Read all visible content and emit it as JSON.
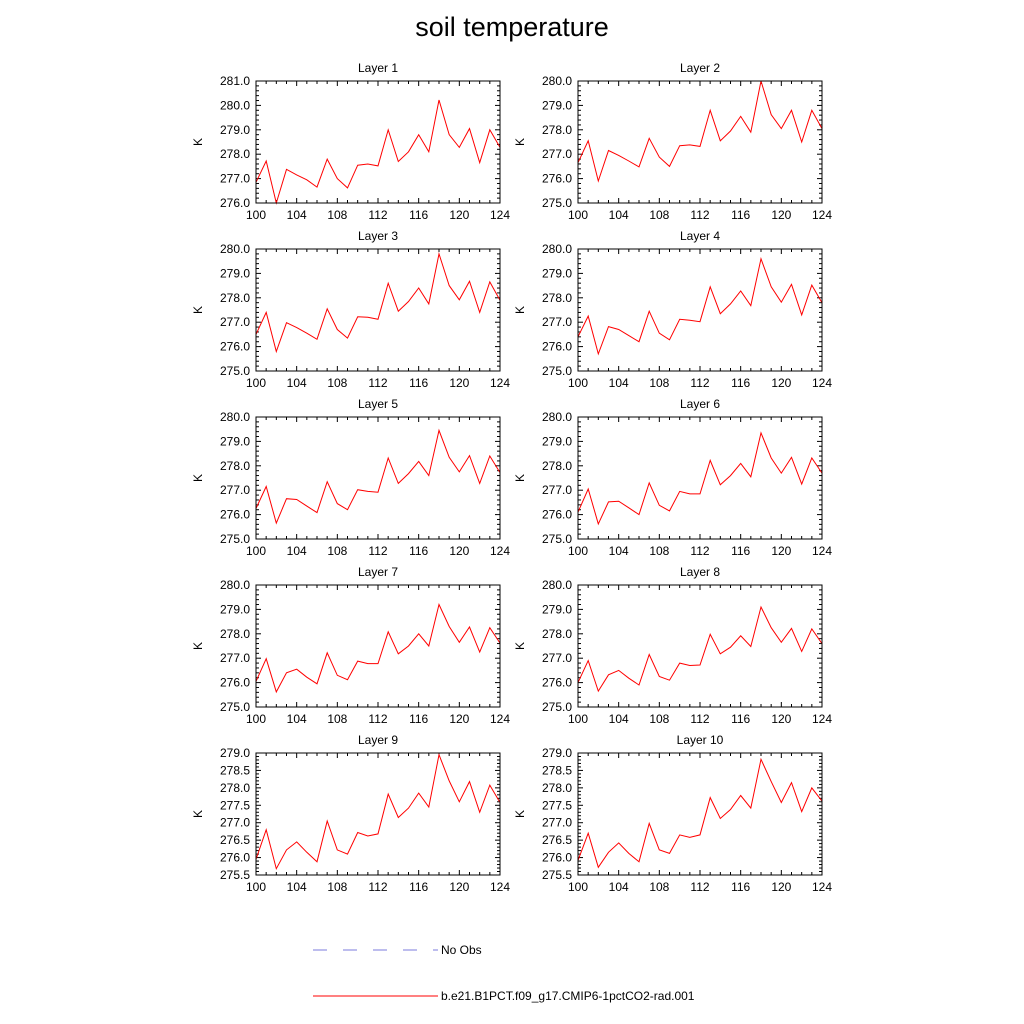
{
  "title": "soil temperature",
  "legend": {
    "obs_label": "No Obs",
    "obs_color": "#7b7bdc",
    "model_label": "b.e21.B1PCT.f09_g17.CMIP6-1pctCO2-rad.001",
    "model_color": "#ff0000"
  },
  "chart_data": [
    {
      "type": "line",
      "title": "Layer 1",
      "xlabel": "",
      "ylabel": "K",
      "xlim": [
        100,
        124
      ],
      "ylim": [
        276.0,
        281.0
      ],
      "xticks": [
        100,
        104,
        108,
        112,
        116,
        120,
        124
      ],
      "yticks": [
        "276.0",
        "277.0",
        "278.0",
        "279.0",
        "280.0",
        "281.0"
      ],
      "x": [
        100,
        101,
        102,
        103,
        104,
        105,
        106,
        107,
        108,
        109,
        110,
        111,
        112,
        113,
        114,
        115,
        116,
        117,
        118,
        119,
        120,
        121,
        122,
        123,
        124
      ],
      "series": [
        {
          "name": "b.e21.B1PCT.f09_g17.CMIP6-1pctCO2-rad.001",
          "color": "#ff0000",
          "values": [
            276.85,
            277.72,
            276.0,
            277.38,
            277.15,
            276.95,
            276.65,
            277.8,
            277.0,
            276.62,
            277.55,
            277.6,
            277.52,
            279.0,
            277.7,
            278.1,
            278.8,
            278.1,
            280.22,
            278.8,
            278.28,
            279.05,
            277.65,
            279.0,
            278.28
          ]
        }
      ]
    },
    {
      "type": "line",
      "title": "Layer 2",
      "xlabel": "",
      "ylabel": "K",
      "xlim": [
        100,
        124
      ],
      "ylim": [
        275.0,
        280.0
      ],
      "xticks": [
        100,
        104,
        108,
        112,
        116,
        120,
        124
      ],
      "yticks": [
        "275.0",
        "276.0",
        "277.0",
        "278.0",
        "279.0",
        "280.0"
      ],
      "x": [
        100,
        101,
        102,
        103,
        104,
        105,
        106,
        107,
        108,
        109,
        110,
        111,
        112,
        113,
        114,
        115,
        116,
        117,
        118,
        119,
        120,
        121,
        122,
        123,
        124
      ],
      "series": [
        {
          "name": "b.e21.B1PCT.f09_g17.CMIP6-1pctCO2-rad.001",
          "color": "#ff0000",
          "values": [
            276.65,
            277.55,
            275.9,
            277.15,
            276.95,
            276.72,
            276.48,
            277.65,
            276.88,
            276.5,
            277.35,
            277.38,
            277.32,
            278.8,
            277.55,
            277.95,
            278.55,
            277.9,
            280.0,
            278.62,
            278.05,
            278.8,
            277.5,
            278.8,
            278.05
          ]
        }
      ]
    },
    {
      "type": "line",
      "title": "Layer 3",
      "xlabel": "",
      "ylabel": "K",
      "xlim": [
        100,
        124
      ],
      "ylim": [
        275.0,
        280.0
      ],
      "xticks": [
        100,
        104,
        108,
        112,
        116,
        120,
        124
      ],
      "yticks": [
        "275.0",
        "276.0",
        "277.0",
        "278.0",
        "279.0",
        "280.0"
      ],
      "x": [
        100,
        101,
        102,
        103,
        104,
        105,
        106,
        107,
        108,
        109,
        110,
        111,
        112,
        113,
        114,
        115,
        116,
        117,
        118,
        119,
        120,
        121,
        122,
        123,
        124
      ],
      "series": [
        {
          "name": "b.e21.B1PCT.f09_g17.CMIP6-1pctCO2-rad.001",
          "color": "#ff0000",
          "values": [
            276.5,
            277.4,
            275.8,
            276.98,
            276.78,
            276.55,
            276.3,
            277.55,
            276.7,
            276.35,
            277.22,
            277.2,
            277.12,
            278.6,
            277.45,
            277.85,
            278.4,
            277.75,
            279.8,
            278.5,
            277.92,
            278.68,
            277.4,
            278.65,
            277.9
          ]
        }
      ]
    },
    {
      "type": "line",
      "title": "Layer 4",
      "xlabel": "",
      "ylabel": "K",
      "xlim": [
        100,
        124
      ],
      "ylim": [
        275.0,
        280.0
      ],
      "xticks": [
        100,
        104,
        108,
        112,
        116,
        120,
        124
      ],
      "yticks": [
        "275.0",
        "276.0",
        "277.0",
        "278.0",
        "279.0",
        "280.0"
      ],
      "x": [
        100,
        101,
        102,
        103,
        104,
        105,
        106,
        107,
        108,
        109,
        110,
        111,
        112,
        113,
        114,
        115,
        116,
        117,
        118,
        119,
        120,
        121,
        122,
        123,
        124
      ],
      "series": [
        {
          "name": "b.e21.B1PCT.f09_g17.CMIP6-1pctCO2-rad.001",
          "color": "#ff0000",
          "values": [
            276.4,
            277.25,
            275.7,
            276.82,
            276.7,
            276.45,
            276.2,
            277.45,
            276.55,
            276.28,
            277.12,
            277.08,
            277.02,
            278.45,
            277.35,
            277.75,
            278.28,
            277.68,
            279.6,
            278.45,
            277.82,
            278.55,
            277.3,
            278.52,
            277.8
          ]
        }
      ]
    },
    {
      "type": "line",
      "title": "Layer 5",
      "xlabel": "",
      "ylabel": "K",
      "xlim": [
        100,
        124
      ],
      "ylim": [
        275.0,
        280.0
      ],
      "xticks": [
        100,
        104,
        108,
        112,
        116,
        120,
        124
      ],
      "yticks": [
        "275.0",
        "276.0",
        "277.0",
        "278.0",
        "279.0",
        "280.0"
      ],
      "x": [
        100,
        101,
        102,
        103,
        104,
        105,
        106,
        107,
        108,
        109,
        110,
        111,
        112,
        113,
        114,
        115,
        116,
        117,
        118,
        119,
        120,
        121,
        122,
        123,
        124
      ],
      "series": [
        {
          "name": "b.e21.B1PCT.f09_g17.CMIP6-1pctCO2-rad.001",
          "color": "#ff0000",
          "values": [
            276.25,
            277.15,
            275.65,
            276.65,
            276.62,
            276.35,
            276.08,
            277.35,
            276.45,
            276.2,
            277.02,
            276.95,
            276.92,
            278.32,
            277.28,
            277.68,
            278.18,
            277.6,
            279.45,
            278.35,
            277.75,
            278.42,
            277.28,
            278.4,
            277.72
          ]
        }
      ]
    },
    {
      "type": "line",
      "title": "Layer 6",
      "xlabel": "",
      "ylabel": "K",
      "xlim": [
        100,
        124
      ],
      "ylim": [
        275.0,
        280.0
      ],
      "xticks": [
        100,
        104,
        108,
        112,
        116,
        120,
        124
      ],
      "yticks": [
        "275.0",
        "276.0",
        "277.0",
        "278.0",
        "279.0",
        "280.0"
      ],
      "x": [
        100,
        101,
        102,
        103,
        104,
        105,
        106,
        107,
        108,
        109,
        110,
        111,
        112,
        113,
        114,
        115,
        116,
        117,
        118,
        119,
        120,
        121,
        122,
        123,
        124
      ],
      "series": [
        {
          "name": "b.e21.B1PCT.f09_g17.CMIP6-1pctCO2-rad.001",
          "color": "#ff0000",
          "values": [
            276.1,
            277.05,
            275.62,
            276.52,
            276.55,
            276.28,
            276.0,
            277.3,
            276.38,
            276.15,
            276.95,
            276.85,
            276.85,
            278.22,
            277.22,
            277.6,
            278.1,
            277.55,
            279.35,
            278.32,
            277.7,
            278.35,
            277.25,
            278.32,
            277.7
          ]
        }
      ]
    },
    {
      "type": "line",
      "title": "Layer 7",
      "xlabel": "",
      "ylabel": "K",
      "xlim": [
        100,
        124
      ],
      "ylim": [
        275.0,
        280.0
      ],
      "xticks": [
        100,
        104,
        108,
        112,
        116,
        120,
        124
      ],
      "yticks": [
        "275.0",
        "276.0",
        "277.0",
        "278.0",
        "279.0",
        "280.0"
      ],
      "x": [
        100,
        101,
        102,
        103,
        104,
        105,
        106,
        107,
        108,
        109,
        110,
        111,
        112,
        113,
        114,
        115,
        116,
        117,
        118,
        119,
        120,
        121,
        122,
        123,
        124
      ],
      "series": [
        {
          "name": "b.e21.B1PCT.f09_g17.CMIP6-1pctCO2-rad.001",
          "color": "#ff0000",
          "values": [
            276.05,
            276.98,
            275.62,
            276.4,
            276.55,
            276.22,
            275.95,
            277.22,
            276.3,
            276.12,
            276.88,
            276.78,
            276.78,
            278.08,
            277.18,
            277.5,
            278.0,
            277.5,
            279.2,
            278.3,
            277.65,
            278.28,
            277.25,
            278.25,
            277.62
          ]
        }
      ]
    },
    {
      "type": "line",
      "title": "Layer 8",
      "xlabel": "",
      "ylabel": "K",
      "xlim": [
        100,
        124
      ],
      "ylim": [
        275.0,
        280.0
      ],
      "xticks": [
        100,
        104,
        108,
        112,
        116,
        120,
        124
      ],
      "yticks": [
        "275.0",
        "276.0",
        "277.0",
        "278.0",
        "279.0",
        "280.0"
      ],
      "x": [
        100,
        101,
        102,
        103,
        104,
        105,
        106,
        107,
        108,
        109,
        110,
        111,
        112,
        113,
        114,
        115,
        116,
        117,
        118,
        119,
        120,
        121,
        122,
        123,
        124
      ],
      "series": [
        {
          "name": "b.e21.B1PCT.f09_g17.CMIP6-1pctCO2-rad.001",
          "color": "#ff0000",
          "values": [
            276.0,
            276.9,
            275.65,
            276.32,
            276.5,
            276.18,
            275.9,
            277.15,
            276.25,
            276.1,
            276.8,
            276.7,
            276.72,
            277.98,
            277.18,
            277.45,
            277.92,
            277.48,
            279.1,
            278.25,
            277.65,
            278.22,
            277.28,
            278.2,
            277.6
          ]
        }
      ]
    },
    {
      "type": "line",
      "title": "Layer 9",
      "xlabel": "",
      "ylabel": "K",
      "xlim": [
        100,
        124
      ],
      "ylim": [
        275.5,
        279.0
      ],
      "xticks": [
        100,
        104,
        108,
        112,
        116,
        120,
        124
      ],
      "yticks": [
        "275.5",
        "276.0",
        "276.5",
        "277.0",
        "277.5",
        "278.0",
        "278.5",
        "279.0"
      ],
      "x": [
        100,
        101,
        102,
        103,
        104,
        105,
        106,
        107,
        108,
        109,
        110,
        111,
        112,
        113,
        114,
        115,
        116,
        117,
        118,
        119,
        120,
        121,
        122,
        123,
        124
      ],
      "series": [
        {
          "name": "b.e21.B1PCT.f09_g17.CMIP6-1pctCO2-rad.001",
          "color": "#ff0000",
          "values": [
            275.95,
            276.8,
            275.68,
            276.22,
            276.45,
            276.15,
            275.88,
            277.05,
            276.22,
            276.1,
            276.72,
            276.62,
            276.68,
            277.82,
            277.15,
            277.42,
            277.85,
            277.45,
            278.95,
            278.2,
            277.6,
            278.18,
            277.3,
            278.08,
            277.58
          ]
        }
      ]
    },
    {
      "type": "line",
      "title": "Layer 10",
      "xlabel": "",
      "ylabel": "K",
      "xlim": [
        100,
        124
      ],
      "ylim": [
        275.5,
        279.0
      ],
      "xticks": [
        100,
        104,
        108,
        112,
        116,
        120,
        124
      ],
      "yticks": [
        "275.5",
        "276.0",
        "276.5",
        "277.0",
        "277.5",
        "278.0",
        "278.5",
        "279.0"
      ],
      "x": [
        100,
        101,
        102,
        103,
        104,
        105,
        106,
        107,
        108,
        109,
        110,
        111,
        112,
        113,
        114,
        115,
        116,
        117,
        118,
        119,
        120,
        121,
        122,
        123,
        124
      ],
      "series": [
        {
          "name": "b.e21.B1PCT.f09_g17.CMIP6-1pctCO2-rad.001",
          "color": "#ff0000",
          "values": [
            275.92,
            276.7,
            275.72,
            276.15,
            276.42,
            276.12,
            275.88,
            276.98,
            276.22,
            276.12,
            276.65,
            276.58,
            276.65,
            277.72,
            277.12,
            277.38,
            277.78,
            277.42,
            278.82,
            278.18,
            277.58,
            278.15,
            277.32,
            278.0,
            277.62
          ]
        }
      ]
    }
  ]
}
